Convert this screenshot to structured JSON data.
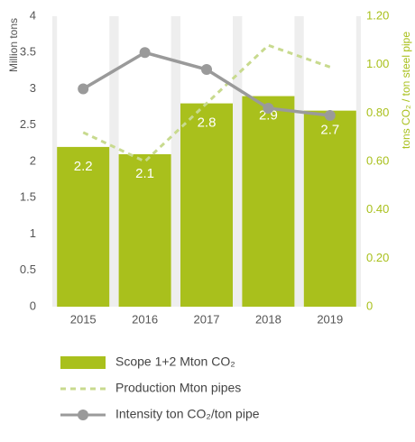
{
  "chart_data": {
    "type": "bar",
    "y_label": "Million tons",
    "y2_label": "tons CO₂ / ton steel pipe",
    "categories": [
      "2015",
      "2016",
      "2017",
      "2018",
      "2019"
    ],
    "series": [
      {
        "name": "Scope 1+2 Mton CO₂",
        "type": "bar",
        "color": "#a9c01c",
        "values": [
          2.2,
          2.1,
          2.8,
          2.9,
          2.7
        ]
      },
      {
        "name": "Production Mton pipes",
        "type": "line",
        "dash": true,
        "color": "#c8da8e",
        "values": [
          2.4,
          2.0,
          2.8,
          3.6,
          3.3
        ]
      },
      {
        "name": "Intensity ton CO₂/ton pipe",
        "type": "line",
        "marker": true,
        "axis": "y2",
        "color": "#9a9a9a",
        "values": [
          0.9,
          1.05,
          0.98,
          0.82,
          0.79
        ]
      }
    ],
    "ylim": [
      0,
      4
    ],
    "yticks": [
      0,
      0.5,
      1,
      1.5,
      2,
      2.5,
      3,
      3.5,
      4
    ],
    "y2lim": [
      0,
      1.2
    ],
    "y2ticks": [
      0,
      {
        "value": 0.2,
        "label": "0.20"
      },
      {
        "value": 0.4,
        "label": "0.40"
      },
      {
        "value": 0.6,
        "label": "0.60"
      },
      {
        "value": 0.8,
        "label": "0.80"
      },
      {
        "value": 1.0,
        "label": "1.00"
      },
      {
        "value": 1.2,
        "label": "1.20"
      }
    ],
    "y2_color": "#a9c01c"
  }
}
